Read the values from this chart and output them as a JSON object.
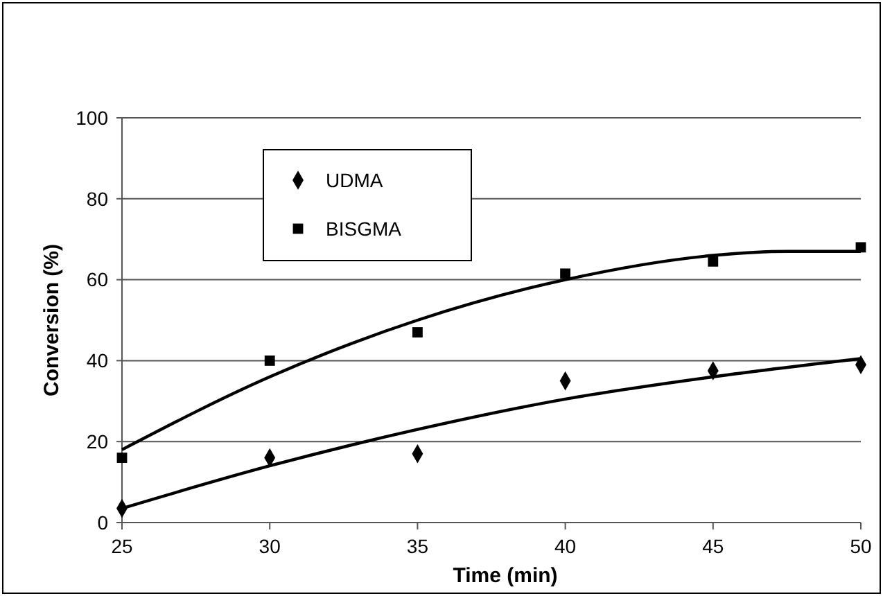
{
  "chart_data": {
    "type": "scatter",
    "xlabel": "Time (min)",
    "ylabel": "Conversion (%)",
    "x": [
      25,
      30,
      35,
      40,
      45,
      50
    ],
    "series": [
      {
        "name": "UDMA",
        "color": "#000000",
        "marker": "diamond",
        "values": [
          3.5,
          16,
          17,
          35,
          37.5,
          39
        ]
      },
      {
        "name": "BISGMA",
        "color": "#000000",
        "marker": "square",
        "values": [
          16,
          40,
          47,
          61.5,
          64.5,
          68
        ]
      },
      {
        "type": "line",
        "color": "#000000",
        "x": [
          25,
          30,
          35,
          40,
          45,
          50
        ],
        "values": [
          3.5,
          14,
          23,
          30.5,
          36,
          40.5
        ]
      },
      {
        "type": "line",
        "color": "#000000",
        "x": [
          25,
          30,
          35,
          40,
          45,
          47.5,
          50
        ],
        "values": [
          18,
          36,
          50,
          60,
          66,
          67,
          67
        ]
      }
    ],
    "xlim": [
      25,
      50
    ],
    "xticks": [
      25,
      30,
      35,
      40,
      45,
      50
    ],
    "ylim": [
      0,
      100
    ],
    "yticks": [
      0,
      20,
      40,
      60,
      80,
      100
    ],
    "grid": "y",
    "legend": "top left"
  }
}
